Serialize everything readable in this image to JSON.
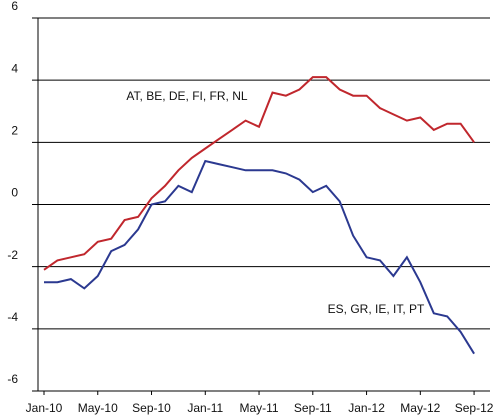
{
  "chart_data": {
    "type": "line",
    "categories": [
      "Jan-10",
      null,
      null,
      null,
      "May-10",
      null,
      null,
      null,
      "Sep-10",
      null,
      null,
      null,
      "Jan-11",
      null,
      null,
      null,
      "May-11",
      null,
      null,
      null,
      "Sep-11",
      null,
      null,
      null,
      "Jan-12",
      null,
      null,
      null,
      "May-12",
      null,
      null,
      null,
      "Sep-12"
    ],
    "series": [
      {
        "name": "AT, BE, DE, FI, FR, NL",
        "color": "#c0272d",
        "values": [
          -2.1,
          -1.8,
          -1.7,
          -1.6,
          -1.2,
          -1.1,
          -0.5,
          -0.4,
          0.2,
          0.6,
          1.1,
          1.5,
          1.8,
          2.1,
          2.4,
          2.7,
          2.5,
          3.6,
          3.5,
          3.7,
          4.1,
          4.1,
          3.7,
          3.5,
          3.5,
          3.1,
          2.9,
          2.7,
          2.8,
          2.4,
          2.6,
          2.6,
          2.0
        ]
      },
      {
        "name": "ES, GR, IE, IT, PT",
        "color": "#2b3990",
        "values": [
          -2.5,
          -2.5,
          -2.4,
          -2.7,
          -2.3,
          -1.5,
          -1.3,
          -0.8,
          0.0,
          0.1,
          0.6,
          0.4,
          1.4,
          1.3,
          1.2,
          1.1,
          1.1,
          1.1,
          1.0,
          0.8,
          0.4,
          0.6,
          0.1,
          -1.0,
          -1.7,
          -1.8,
          -2.3,
          -1.7,
          -2.5,
          -3.5,
          -3.6,
          -4.1,
          -4.8
        ]
      }
    ],
    "ylim": [
      -6,
      6
    ],
    "yticks": [
      -6,
      -4,
      -2,
      0,
      2,
      4,
      6
    ],
    "grid": true
  }
}
